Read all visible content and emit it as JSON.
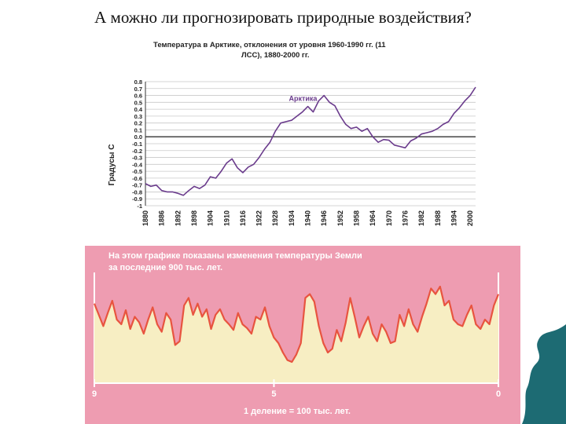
{
  "slide": {
    "title": "А можно ли прогнозировать природные воздействия?"
  },
  "colors": {
    "arctic_line": "#6a3b8c",
    "paleo_fill": "#f7eec3",
    "paleo_line": "#e8543f",
    "paleo_background": "#ee9cb1",
    "deco_shape": "#1d6b73"
  },
  "icons": [
    "wave-corner-decoration"
  ],
  "chart_data": [
    {
      "type": "line",
      "title": "Температура в Арктике, отклонения от уровня 1960-1990 гг. (11 ЛСС), 1880-2000 гг.",
      "title_lines": [
        "Температура в Арктике, отклонения от уровня 1960-1990 гг. (11",
        "ЛСС), 1880-2000 гг."
      ],
      "ylabel": "Градусы С",
      "xlabel": "",
      "ylim": [
        -1,
        0.8
      ],
      "xlim": [
        1880,
        2002
      ],
      "grid": true,
      "y_ticks": [
        "0.8",
        "0.7",
        "0.6",
        "0.5",
        "0.4",
        "0.3",
        "0.2",
        "0.1",
        "0.0",
        "-0.1",
        "-0.2",
        "-0.3",
        "-0.4",
        "-0.5",
        "-0.6",
        "-0.7",
        "-0.8",
        "-0.9",
        "-1"
      ],
      "x_ticks": [
        "1880",
        "1886",
        "1892",
        "1898",
        "1904",
        "1910",
        "1916",
        "1922",
        "1928",
        "1934",
        "1940",
        "1946",
        "1952",
        "1958",
        "1964",
        "1970",
        "1976",
        "1982",
        "1988",
        "1994",
        "2000"
      ],
      "series": [
        {
          "name": "Арктика",
          "x": [
            1880,
            1882,
            1884,
            1886,
            1888,
            1890,
            1892,
            1894,
            1896,
            1898,
            1900,
            1902,
            1904,
            1906,
            1908,
            1910,
            1912,
            1914,
            1916,
            1918,
            1920,
            1922,
            1924,
            1926,
            1928,
            1930,
            1932,
            1934,
            1936,
            1938,
            1940,
            1942,
            1944,
            1946,
            1948,
            1950,
            1952,
            1954,
            1956,
            1958,
            1960,
            1962,
            1964,
            1966,
            1968,
            1970,
            1972,
            1974,
            1976,
            1978,
            1980,
            1982,
            1984,
            1986,
            1988,
            1990,
            1992,
            1994,
            1996,
            1998,
            2000,
            2002
          ],
          "values": [
            -0.68,
            -0.72,
            -0.7,
            -0.78,
            -0.8,
            -0.8,
            -0.82,
            -0.85,
            -0.78,
            -0.72,
            -0.75,
            -0.7,
            -0.58,
            -0.6,
            -0.5,
            -0.38,
            -0.32,
            -0.45,
            -0.52,
            -0.44,
            -0.4,
            -0.3,
            -0.18,
            -0.08,
            0.08,
            0.2,
            0.22,
            0.24,
            0.3,
            0.36,
            0.44,
            0.36,
            0.52,
            0.6,
            0.5,
            0.45,
            0.3,
            0.18,
            0.12,
            0.14,
            0.08,
            0.12,
            0.0,
            -0.08,
            -0.04,
            -0.05,
            -0.12,
            -0.14,
            -0.16,
            -0.06,
            -0.02,
            0.04,
            0.06,
            0.08,
            0.12,
            0.18,
            0.22,
            0.34,
            0.42,
            0.52,
            0.6,
            0.72
          ]
        }
      ]
    },
    {
      "type": "area",
      "title": "На этом графике показаны изменения температуры Земли за последние 900 тыс. лет.",
      "title_lines": [
        "На этом графике показаны изменения температуры Земли",
        "за последние 900 тыс. лет."
      ],
      "xlabel": "1 деление = 100 тыс. лет.",
      "ylabel": "",
      "x_ticks": [
        "9",
        "5",
        "0"
      ],
      "xlim": [
        9,
        0
      ],
      "ylim": [
        0,
        1
      ],
      "grid": false,
      "series": [
        {
          "x": [
            9.0,
            8.9,
            8.8,
            8.7,
            8.6,
            8.5,
            8.4,
            8.3,
            8.2,
            8.1,
            8.0,
            7.9,
            7.8,
            7.7,
            7.6,
            7.5,
            7.4,
            7.3,
            7.2,
            7.1,
            7.0,
            6.9,
            6.8,
            6.7,
            6.6,
            6.5,
            6.4,
            6.3,
            6.2,
            6.1,
            6.0,
            5.9,
            5.8,
            5.7,
            5.6,
            5.5,
            5.4,
            5.3,
            5.2,
            5.1,
            5.0,
            4.9,
            4.8,
            4.7,
            4.6,
            4.5,
            4.4,
            4.3,
            4.2,
            4.1,
            4.0,
            3.9,
            3.8,
            3.7,
            3.6,
            3.5,
            3.4,
            3.3,
            3.2,
            3.1,
            3.0,
            2.9,
            2.8,
            2.7,
            2.6,
            2.5,
            2.4,
            2.3,
            2.2,
            2.1,
            2.0,
            1.9,
            1.8,
            1.7,
            1.6,
            1.5,
            1.4,
            1.3,
            1.2,
            1.1,
            1.0,
            0.9,
            0.8,
            0.7,
            0.6,
            0.5,
            0.4,
            0.3,
            0.2,
            0.1,
            0.0
          ],
          "values": [
            0.72,
            0.6,
            0.48,
            0.62,
            0.75,
            0.55,
            0.5,
            0.65,
            0.45,
            0.58,
            0.52,
            0.4,
            0.55,
            0.68,
            0.5,
            0.42,
            0.62,
            0.55,
            0.28,
            0.32,
            0.7,
            0.78,
            0.6,
            0.72,
            0.58,
            0.66,
            0.45,
            0.6,
            0.66,
            0.55,
            0.5,
            0.44,
            0.62,
            0.5,
            0.46,
            0.4,
            0.58,
            0.55,
            0.68,
            0.48,
            0.36,
            0.3,
            0.2,
            0.12,
            0.1,
            0.18,
            0.3,
            0.78,
            0.82,
            0.74,
            0.48,
            0.3,
            0.2,
            0.24,
            0.44,
            0.32,
            0.52,
            0.78,
            0.58,
            0.36,
            0.48,
            0.58,
            0.4,
            0.32,
            0.5,
            0.42,
            0.3,
            0.32,
            0.6,
            0.48,
            0.66,
            0.5,
            0.42,
            0.58,
            0.72,
            0.88,
            0.82,
            0.9,
            0.7,
            0.75,
            0.55,
            0.5,
            0.48,
            0.6,
            0.7,
            0.5,
            0.45,
            0.55,
            0.5,
            0.7,
            0.82
          ]
        }
      ]
    }
  ]
}
